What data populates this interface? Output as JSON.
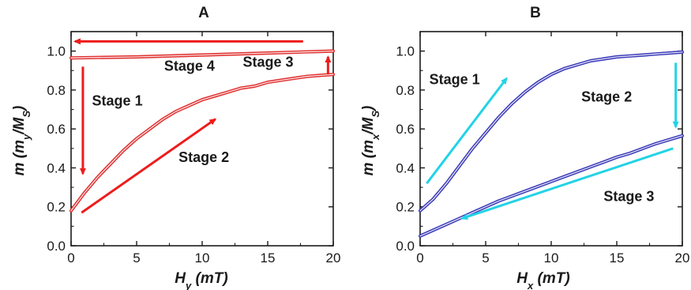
{
  "chart_data": [
    {
      "type": "line",
      "title": "A",
      "xlabel": "H_y (mT)",
      "ylabel": "m (m_y/M_S)",
      "xlabel_main": "H",
      "xlabel_sub": "y",
      "xlabel_unit": "(mT)",
      "ylabel_pre": "m (m",
      "ylabel_sub1": "y",
      "ylabel_mid": "/M",
      "ylabel_sub2": "S",
      "ylabel_post": ")",
      "xlim": [
        0,
        20
      ],
      "ylim": [
        0.0,
        1.1
      ],
      "xticks": [
        0,
        5,
        10,
        15,
        20
      ],
      "xtick_labels": [
        "0",
        "5",
        "10",
        "15",
        "20"
      ],
      "yticks": [
        0.0,
        0.2,
        0.4,
        0.6,
        0.8,
        1.0
      ],
      "ytick_labels": [
        "0.0",
        "0.2",
        "0.4",
        "0.6",
        "0.8",
        "1.0"
      ],
      "grid": false,
      "color": "#e03030",
      "series": [
        {
          "x": [
            0,
            1,
            2,
            3,
            4,
            5,
            6,
            7,
            8,
            9,
            10,
            11,
            12,
            13,
            14,
            15,
            16,
            17,
            18,
            19,
            20
          ],
          "y": [
            0.18,
            0.27,
            0.35,
            0.42,
            0.49,
            0.55,
            0.6,
            0.65,
            0.69,
            0.72,
            0.75,
            0.77,
            0.79,
            0.81,
            0.82,
            0.84,
            0.85,
            0.86,
            0.87,
            0.875,
            0.88
          ]
        },
        {
          "x": [
            20,
            15,
            10,
            5,
            0
          ],
          "y": [
            1.0,
            0.99,
            0.98,
            0.97,
            0.965
          ]
        }
      ],
      "annotations": [
        {
          "text": "Stage 4",
          "x": 7.1,
          "y": 0.9
        },
        {
          "text": "Stage 3",
          "x": 13.1,
          "y": 0.92
        },
        {
          "text": "Stage 1",
          "x": 1.6,
          "y": 0.72
        },
        {
          "text": "Stage 2",
          "x": 8.2,
          "y": 0.43
        }
      ],
      "arrows": [
        {
          "from": [
            17.7,
            1.05
          ],
          "to": [
            0.3,
            1.05
          ]
        },
        {
          "from": [
            0.9,
            0.92
          ],
          "to": [
            0.9,
            0.37
          ]
        },
        {
          "from": [
            0.8,
            0.17
          ],
          "to": [
            11.0,
            0.65
          ]
        },
        {
          "from": [
            19.6,
            0.88
          ],
          "to": [
            19.6,
            0.97
          ]
        }
      ]
    },
    {
      "type": "line",
      "title": "B",
      "xlabel": "H_x (mT)",
      "ylabel": "m (m_x/M_S)",
      "xlabel_main": "H",
      "xlabel_sub": "x",
      "xlabel_unit": "(mT)",
      "ylabel_pre": "m (m",
      "ylabel_sub1": "x",
      "ylabel_mid": "/M",
      "ylabel_sub2": "S",
      "ylabel_post": ")",
      "xlim": [
        0,
        20
      ],
      "ylim": [
        0.0,
        1.1
      ],
      "xticks": [
        0,
        5,
        10,
        15,
        20
      ],
      "xtick_labels": [
        "0",
        "5",
        "10",
        "15",
        "20"
      ],
      "yticks": [
        0.0,
        0.2,
        0.4,
        0.6,
        0.8,
        1.0
      ],
      "ytick_labels": [
        "0.0",
        "0.2",
        "0.4",
        "0.6",
        "0.8",
        "1.0"
      ],
      "grid": false,
      "color": "#3a3ab8",
      "series": [
        {
          "x": [
            0,
            1,
            2,
            3,
            4,
            5,
            6,
            7,
            8,
            9,
            10,
            11,
            12,
            13,
            14,
            15,
            16,
            17,
            18,
            19,
            20
          ],
          "y": [
            0.18,
            0.24,
            0.32,
            0.41,
            0.5,
            0.58,
            0.66,
            0.73,
            0.79,
            0.84,
            0.88,
            0.91,
            0.93,
            0.95,
            0.96,
            0.97,
            0.975,
            0.98,
            0.985,
            0.99,
            0.995
          ]
        },
        {
          "x": [
            0,
            1,
            2,
            3,
            4,
            5,
            6,
            7,
            8,
            9,
            10,
            11,
            12,
            13,
            14,
            15,
            16,
            17,
            18,
            19,
            20
          ],
          "y": [
            0.05,
            0.08,
            0.11,
            0.14,
            0.17,
            0.2,
            0.23,
            0.255,
            0.28,
            0.305,
            0.33,
            0.355,
            0.38,
            0.405,
            0.43,
            0.455,
            0.475,
            0.5,
            0.525,
            0.545,
            0.565
          ]
        }
      ],
      "annotations": [
        {
          "text": "Stage 1",
          "x": 0.7,
          "y": 0.83
        },
        {
          "text": "Stage 2",
          "x": 12.3,
          "y": 0.74
        },
        {
          "text": "Stage 3",
          "x": 14.0,
          "y": 0.23
        }
      ],
      "arrows": [
        {
          "from": [
            0.5,
            0.32
          ],
          "to": [
            6.6,
            0.86
          ]
        },
        {
          "from": [
            19.5,
            0.94
          ],
          "to": [
            19.5,
            0.61
          ]
        },
        {
          "from": [
            19.3,
            0.5
          ],
          "to": [
            3.2,
            0.14
          ]
        }
      ]
    }
  ],
  "colors": {
    "annotation_arrow_A": "#ee1c1c",
    "annotation_arrow_B": "#22d3e6"
  }
}
